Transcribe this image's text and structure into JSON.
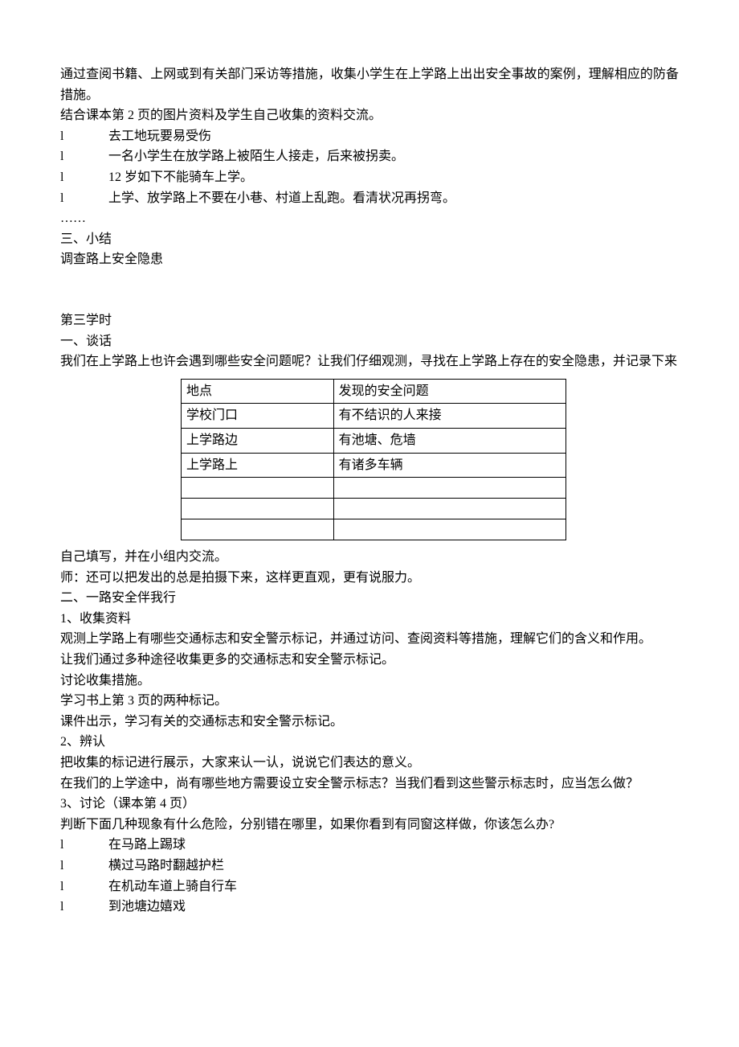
{
  "intro": {
    "p1": "通过查阅书籍、上网或到有关部门采访等措施，收集小学生在上学路上出出安全事故的案例，理解相应的防备措施。",
    "p2": "结合课本第 2 页的图片资料及学生自己收集的资料交流。"
  },
  "list1": {
    "marker": "l",
    "items": [
      "去工地玩要易受伤",
      "一名小学生在放学路上被陌生人接走，后来被拐卖。",
      "12 岁如下不能骑车上学。",
      "上学、放学路上不要在小巷、村道上乱跑。看清状况再拐弯。"
    ]
  },
  "ellipsis": "……",
  "section3": {
    "heading": "三、小结",
    "content": "调查路上安全隐患"
  },
  "lesson3": {
    "title": "第三学时",
    "heading1": "一、谈话",
    "p1": "我们在上学路上也许会遇到哪些安全问题呢？让我们仔细观测，寻找在上学路上存在的安全隐患，并记录下来"
  },
  "table": {
    "col1_width": 190,
    "col2_width": 290,
    "border_color": "#000000",
    "rows": [
      [
        "地点",
        "发现的安全问题"
      ],
      [
        "学校门口",
        "有不结识的人来接"
      ],
      [
        "上学路边",
        "有池塘、危墙"
      ],
      [
        "上学路上",
        "有诸多车辆"
      ],
      [
        "",
        ""
      ],
      [
        "",
        ""
      ],
      [
        "",
        ""
      ]
    ]
  },
  "after_table": {
    "p1": "自己填写，并在小组内交流。",
    "p2": "师：还可以把发出的总是拍摄下来，这样更直观，更有说服力。"
  },
  "section2b": {
    "heading": "二、一路安全伴我行",
    "sub1": "1、收集资料",
    "p1": "观测上学路上有哪些交通标志和安全警示标记，并通过访问、查阅资料等措施，理解它们的含义和作用。",
    "p2": "让我们通过多种途径收集更多的交通标志和安全警示标记。",
    "p3": "讨论收集措施。",
    "p4": "学习书上第 3 页的两种标记。",
    "p5": "课件出示，学习有关的交通标志和安全警示标记。",
    "sub2": "2、辨认",
    "p6": "把收集的标记进行展示，大家来认一认，说说它们表达的意义。",
    "p7": "在我们的上学途中，尚有哪些地方需要设立安全警示标志？当我们看到这些警示标志时，应当怎么做？",
    "sub3": "3、讨论（课本第 4 页）",
    "p8": "判断下面几种现象有什么危险，分别错在哪里，如果你看到有同窗这样做，你该怎么办?"
  },
  "list2": {
    "marker": "l",
    "items": [
      "在马路上踢球",
      "横过马路时翻越护栏",
      "在机动车道上骑自行车",
      "到池塘边嬉戏"
    ]
  }
}
